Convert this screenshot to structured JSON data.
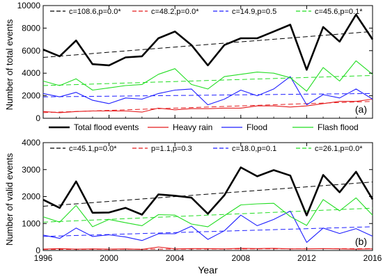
{
  "figure": {
    "xlabel": "Year",
    "legend": [
      "Total flood events",
      "Heavy rain",
      "Flood",
      "Flash flood"
    ]
  },
  "colors": {
    "total": "#000000",
    "heavy": "#e41a1c",
    "flood": "#1f1fff",
    "flash": "#22dd22"
  },
  "chart_data": [
    {
      "type": "line",
      "panel_label": "(a)",
      "ylabel": "Number of total events",
      "xlim": [
        1996,
        2016
      ],
      "ylim": [
        0,
        10000
      ],
      "x": [
        1996,
        1997,
        1998,
        1999,
        2000,
        2001,
        2002,
        2003,
        2004,
        2005,
        2006,
        2007,
        2008,
        2009,
        2010,
        2011,
        2012,
        2013,
        2014,
        2015,
        2016
      ],
      "x_ticks": [
        1996,
        2000,
        2004,
        2008,
        2012,
        2016
      ],
      "y_ticks": [
        0,
        2000,
        4000,
        6000,
        8000,
        10000
      ],
      "series": [
        {
          "key": "total",
          "values": [
            6100,
            5500,
            6900,
            4800,
            4700,
            5400,
            5500,
            7100,
            7700,
            6500,
            4700,
            6500,
            7100,
            7100,
            7700,
            8300,
            4300,
            8100,
            6800,
            9200,
            7000
          ],
          "trend": [
            5400,
            7700
          ]
        },
        {
          "key": "heavy",
          "values": [
            600,
            500,
            600,
            650,
            650,
            650,
            550,
            900,
            750,
            850,
            850,
            900,
            900,
            1100,
            1100,
            1000,
            1100,
            1300,
            1500,
            1500,
            1700
          ],
          "trend": [
            500,
            1500
          ]
        },
        {
          "key": "flood",
          "values": [
            2200,
            1900,
            2300,
            1600,
            1300,
            1800,
            1700,
            2200,
            2500,
            2600,
            1200,
            1700,
            2500,
            2000,
            2600,
            3700,
            1200,
            2100,
            1800,
            2600,
            1700
          ],
          "trend": [
            1900,
            2200
          ]
        },
        {
          "key": "flash",
          "values": [
            3300,
            2900,
            3500,
            2500,
            2700,
            2900,
            3000,
            3900,
            4400,
            3000,
            2600,
            3700,
            3900,
            4100,
            4000,
            3600,
            2400,
            4500,
            3300,
            5100,
            3900
          ],
          "trend": [
            2900,
            3800
          ]
        }
      ],
      "trend_labels": [
        "c=108.6,p=0.0*",
        "c=48.2,p=0.0*",
        "c=14.9,p=0.5",
        "c=45.6,p=0.1*"
      ]
    },
    {
      "type": "line",
      "panel_label": "(b)",
      "ylabel": "Number of valid events",
      "xlim": [
        1996,
        2016
      ],
      "ylim": [
        0,
        4000
      ],
      "x": [
        1996,
        1997,
        1998,
        1999,
        2000,
        2001,
        2002,
        2003,
        2004,
        2005,
        2006,
        2007,
        2008,
        2009,
        2010,
        2011,
        2012,
        2013,
        2014,
        2015,
        2016
      ],
      "x_ticks": [
        1996,
        2000,
        2004,
        2008,
        2012,
        2016
      ],
      "y_ticks": [
        0,
        1000,
        2000,
        3000,
        4000
      ],
      "series": [
        {
          "key": "total",
          "values": [
            1880,
            1580,
            2560,
            1400,
            1410,
            1580,
            1330,
            2080,
            2030,
            1960,
            1360,
            2050,
            3080,
            2750,
            2980,
            2780,
            1300,
            2800,
            2160,
            2920,
            1900
          ],
          "trend": [
            1640,
            2540
          ]
        },
        {
          "key": "heavy",
          "values": [
            50,
            70,
            50,
            60,
            50,
            60,
            40,
            130,
            60,
            70,
            70,
            60,
            80,
            70,
            80,
            60,
            60,
            70,
            60,
            50,
            60
          ],
          "trend": [
            40,
            70
          ]
        },
        {
          "key": "flood",
          "values": [
            570,
            450,
            830,
            520,
            580,
            500,
            370,
            620,
            620,
            900,
            410,
            730,
            1310,
            920,
            1150,
            1460,
            300,
            830,
            630,
            810,
            530
          ],
          "trend": [
            520,
            880
          ]
        },
        {
          "key": "flash",
          "values": [
            1250,
            1050,
            1670,
            880,
            1150,
            1030,
            920,
            1330,
            1310,
            980,
            880,
            1290,
            1690,
            1730,
            1750,
            1260,
            930,
            1890,
            1470,
            1950,
            1310
          ],
          "trend": [
            1050,
            1570
          ]
        }
      ],
      "trend_labels": [
        "c=45.1,p=0.0*",
        "p=1.1,p=0.3",
        "c=18.0,p=0.1",
        "c=26.1,p=0.0*"
      ]
    }
  ]
}
